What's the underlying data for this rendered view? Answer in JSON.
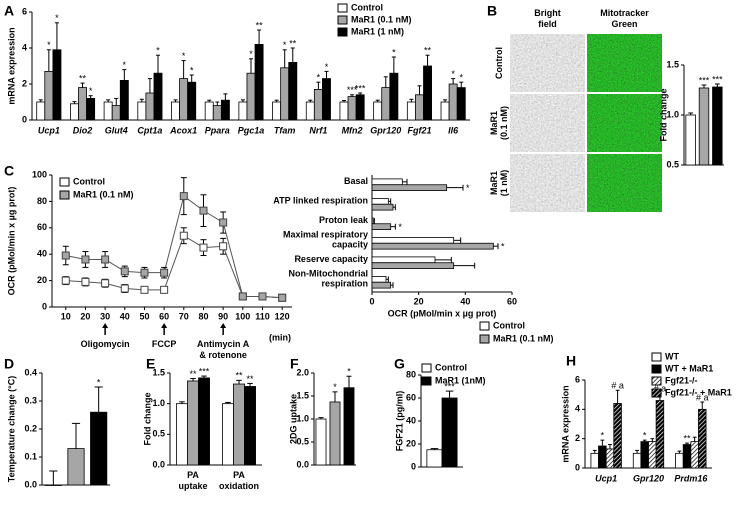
{
  "chart_data": [
    {
      "panel": "A",
      "type": "bar",
      "ylabel": "mRNA expression",
      "category_style": "italic",
      "categories": [
        "Ucp1",
        "Dio2",
        "Glut4",
        "Cpt1a",
        "Acox1",
        "Ppara",
        "Pgc1a",
        "Tfam",
        "Nrf1",
        "Mfn2",
        "Gpr120",
        "Fgf21",
        "Il6"
      ],
      "series": [
        {
          "name": "Control",
          "color": "#ffffff",
          "values": [
            1,
            0.9,
            1,
            1,
            1,
            1,
            1,
            1,
            1,
            1,
            1,
            1,
            1
          ],
          "errors": [
            0.12,
            0.12,
            0.12,
            0.15,
            0.12,
            0.1,
            0.12,
            0.1,
            0.1,
            0.08,
            0.1,
            0.15,
            0.12
          ]
        },
        {
          "name": "MaR1 (0.1 nM)",
          "color": "#a6a6a6",
          "values": [
            2.7,
            1.8,
            0.8,
            1.5,
            2.3,
            0.8,
            2.6,
            2.9,
            1.7,
            1.3,
            1.8,
            1.4,
            2.0
          ],
          "errors": [
            1.2,
            0.25,
            0.4,
            0.8,
            1.0,
            0.2,
            0.8,
            1.0,
            0.4,
            0.1,
            0.6,
            0.5,
            0.3
          ],
          "significance": [
            "*",
            "**",
            null,
            null,
            "*",
            null,
            "*",
            "*",
            "*",
            "***",
            null,
            null,
            "*"
          ]
        },
        {
          "name": "MaR1 (1 nM)",
          "color": "#000000",
          "values": [
            3.9,
            1.2,
            2.2,
            2.6,
            2.1,
            1.1,
            4.2,
            3.2,
            2.3,
            1.4,
            2.6,
            3.0,
            1.8
          ],
          "errors": [
            1.5,
            0.15,
            0.6,
            1.0,
            0.4,
            0.35,
            0.8,
            0.8,
            0.4,
            0.1,
            0.9,
            0.6,
            0.3
          ],
          "significance": [
            "*",
            "*",
            "*",
            "*",
            "*",
            null,
            "**",
            "**",
            "*",
            "***",
            "*",
            "**",
            "*"
          ]
        }
      ],
      "ylim": [
        0,
        6
      ],
      "yticks": [
        0,
        2,
        4,
        6
      ]
    },
    {
      "panel": "B",
      "type": "image_grid",
      "columns": [
        [
          "Bright",
          "field"
        ],
        [
          "Mitotracker",
          "Green"
        ]
      ],
      "rows": [
        [
          "Control"
        ],
        [
          "MaR1",
          "(0.1 nM)"
        ],
        [
          "MaR1",
          "(1 nM)"
        ]
      ],
      "column_colors": [
        "#9a9a9a",
        "#1f8f1f"
      ]
    },
    {
      "type": "bar",
      "ylabel": "Fold change",
      "categories": [
        null,
        null,
        null
      ],
      "values": [
        1.0,
        1.27,
        1.28
      ],
      "colors": [
        "#ffffff",
        "#a6a6a6",
        "#000000"
      ],
      "errors": [
        0.02,
        0.03,
        0.03
      ],
      "significance": [
        null,
        "***",
        "***"
      ],
      "ylim": [
        0.5,
        1.5
      ],
      "yticks": [
        0.5,
        {
          "value": 1,
          "label": "1.0"
        },
        1.5
      ]
    },
    {
      "panel": "C",
      "type": "line",
      "ylabel": "OCR (pMol/min x µg prot)",
      "xlabel": "(min)",
      "x": [
        10,
        20,
        30,
        40,
        50,
        60,
        70,
        80,
        90,
        100,
        110,
        120
      ],
      "series": [
        {
          "name": "Control",
          "color": "#ffffff",
          "values": [
            20,
            19,
            18,
            14,
            13,
            13,
            54,
            45,
            46,
            8,
            8,
            7
          ],
          "errors": [
            3,
            3,
            3,
            3,
            2,
            2,
            6,
            6,
            6,
            1,
            1,
            1
          ]
        },
        {
          "name": "MaR1 (0.1 nM)",
          "color": "#a6a6a6",
          "values": [
            39,
            36,
            36,
            27,
            26,
            26,
            84,
            73,
            64,
            8,
            8,
            7
          ],
          "errors": [
            7,
            6,
            6,
            4,
            4,
            4,
            14,
            12,
            8,
            1,
            1,
            1
          ]
        }
      ],
      "annotations": [
        {
          "x": 30,
          "text": [
            "Oligomycin"
          ]
        },
        {
          "x": 60,
          "text": [
            "FCCP"
          ]
        },
        {
          "x": 90,
          "text": [
            "Antimycin A",
            "& rotenone"
          ]
        }
      ],
      "xlim": [
        3,
        125
      ],
      "xticks": [
        10,
        20,
        30,
        40,
        50,
        60,
        70,
        80,
        90,
        100,
        110,
        120
      ],
      "ylim": [
        0,
        100
      ],
      "yticks": [
        0,
        20,
        40,
        60,
        80,
        100
      ]
    },
    {
      "type": "hbar",
      "xlabel": "OCR (pMol/min x µg prot)",
      "categories": [
        [
          "Basal"
        ],
        [
          "ATP linked respiration"
        ],
        [
          "Proton leak"
        ],
        [
          "Maximal respiratory",
          "capacity"
        ],
        [
          "Reserve capacity"
        ],
        [
          "Non-Mitochondrial",
          "respiration"
        ]
      ],
      "series": [
        {
          "name": "Control",
          "color": "#ffffff",
          "values": [
            13,
            7,
            0.5,
            35,
            27,
            6
          ],
          "errors": [
            2,
            1,
            0.5,
            3,
            7,
            1
          ]
        },
        {
          "name": "MaR1  (0.1 nM)",
          "color": "#a6a6a6",
          "values": [
            32,
            9,
            8,
            52,
            35,
            8
          ],
          "errors": [
            7,
            1,
            2,
            2,
            9,
            1
          ],
          "significance": [
            "*",
            null,
            "*",
            "*",
            null,
            null
          ]
        }
      ],
      "xlim": [
        0,
        60
      ],
      "xticks": [
        0,
        20,
        40,
        60
      ]
    },
    {
      "panel": "D",
      "type": "bar",
      "ylabel": "Temperature change (°C)",
      "categories": [
        null,
        null,
        null
      ],
      "values": [
        0,
        0.13,
        0.26
      ],
      "colors": [
        "#ffffff",
        "#a6a6a6",
        "#000000"
      ],
      "errors": [
        0.05,
        0.09,
        0.09
      ],
      "significance": [
        null,
        null,
        "*"
      ],
      "ylim": [
        0,
        0.4
      ],
      "yticks": [
        {
          "value": 0,
          "label": "0.0"
        },
        0.1,
        0.2,
        0.3,
        0.4
      ]
    },
    {
      "panel": "E",
      "type": "bar",
      "ylabel": "Fold change",
      "categories": [
        [
          "PA",
          "uptake"
        ],
        [
          "PA",
          "oxidation"
        ]
      ],
      "series": [
        {
          "color": "#ffffff",
          "values": [
            1.0,
            1.0
          ],
          "errors": [
            0.03,
            0.02
          ]
        },
        {
          "color": "#a6a6a6",
          "values": [
            1.37,
            1.32
          ],
          "errors": [
            0.04,
            0.06
          ],
          "significance": [
            "**",
            "**"
          ]
        },
        {
          "color": "#000000",
          "values": [
            1.42,
            1.28
          ],
          "errors": [
            0.03,
            0.05
          ],
          "significance": [
            "***",
            "**"
          ]
        }
      ],
      "ylim": [
        0,
        1.5
      ],
      "yticks": [
        {
          "value": 0,
          "label": "0.0"
        },
        0.5,
        {
          "value": 1,
          "label": "1.0"
        },
        1.5
      ]
    },
    {
      "panel": "F",
      "type": "bar",
      "ylabel": "2DG uptake",
      "categories": [
        null,
        null,
        null
      ],
      "values": [
        1.0,
        1.37,
        1.68
      ],
      "colors": [
        "#ffffff",
        "#a6a6a6",
        "#000000"
      ],
      "errors": [
        0.03,
        0.22,
        0.25
      ],
      "significance": [
        null,
        "*",
        "*"
      ],
      "ylim": [
        0,
        2
      ],
      "yticks": [
        {
          "value": 0,
          "label": "0.0"
        },
        0.5,
        {
          "value": 1,
          "label": "1.0"
        },
        1.5,
        {
          "value": 2,
          "label": "2.0"
        }
      ]
    },
    {
      "panel": "G",
      "type": "bar",
      "ylabel": "FGF21 (pg/ml)",
      "categories": [
        null
      ],
      "series": [
        {
          "name": "Control",
          "color": "#ffffff",
          "values": [
            15
          ],
          "errors": [
            1
          ]
        },
        {
          "name": "MaR1 (1nM)",
          "color": "#000000",
          "values": [
            60
          ],
          "errors": [
            6
          ],
          "significance": [
            "***"
          ]
        }
      ],
      "ylim": [
        0,
        80
      ],
      "yticks": [
        0,
        20,
        40,
        60,
        80
      ]
    },
    {
      "panel": "H",
      "type": "bar",
      "ylabel": "mRNA expression",
      "category_style": "italic",
      "categories": [
        "Ucp1",
        "Gpr120",
        "Prdm16"
      ],
      "series": [
        {
          "name": "WT",
          "color": "#ffffff",
          "values": [
            1,
            1,
            1
          ],
          "errors": [
            0.2,
            0.2,
            0.15
          ]
        },
        {
          "name": "WT + MaR1",
          "color": "#000000",
          "values": [
            1.5,
            1.8,
            1.6
          ],
          "errors": [
            0.4,
            0.1,
            0.1
          ],
          "significance": [
            "*",
            "*",
            "**"
          ]
        },
        {
          "name": "Fgf21-/-",
          "color": "#ffffff",
          "hatch": "#000000",
          "values": [
            1.3,
            1.8,
            1.8
          ],
          "errors": [
            0.3,
            0.2,
            0.3
          ]
        },
        {
          "name": "Fgf21-/- + MaR1",
          "color": "#000000",
          "hatch": "#ffffff",
          "values": [
            4.4,
            4.6,
            4.0
          ],
          "errors": [
            0.9,
            0.5,
            0.5
          ],
          "significance": [
            "# a",
            "# a",
            "# a"
          ]
        }
      ],
      "ylim": [
        0,
        6
      ],
      "yticks": [
        0,
        2,
        4,
        6
      ]
    }
  ]
}
